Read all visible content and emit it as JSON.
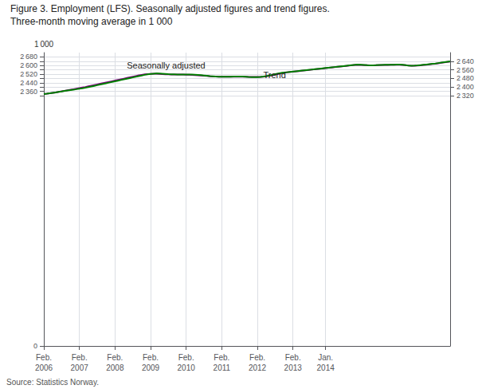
{
  "chart_data": {
    "type": "line",
    "title": "Figure 3. Employment (LFS). Seasonally adjusted figures and trend figures.",
    "subtitle": "Three-month moving average in 1 000",
    "source": "Source: Statistics Norway.",
    "ylabel": "1 000",
    "categories": [
      "Feb.\n2006",
      null,
      null,
      null,
      null,
      null,
      null,
      null,
      null,
      null,
      null,
      null,
      "Feb.\n2007",
      null,
      null,
      null,
      null,
      null,
      null,
      null,
      null,
      null,
      null,
      null,
      "Feb.\n2008",
      null,
      null,
      null,
      null,
      null,
      null,
      null,
      null,
      null,
      null,
      null,
      "Feb.\n2009",
      null,
      null,
      null,
      null,
      null,
      null,
      null,
      null,
      null,
      null,
      null,
      "Feb.\n2010",
      null,
      null,
      null,
      null,
      null,
      null,
      null,
      null,
      null,
      null,
      null,
      "Feb.\n2011",
      null,
      null,
      null,
      null,
      null,
      null,
      null,
      null,
      null,
      null,
      null,
      "Feb.\n2012",
      null,
      null,
      null,
      null,
      null,
      null,
      null,
      null,
      null,
      null,
      null,
      "Feb.\n2013",
      null,
      null,
      null,
      null,
      null,
      null,
      null,
      null,
      null,
      null,
      "Jan.\n2014",
      null,
      null,
      null,
      null,
      null,
      null,
      null,
      null,
      null,
      null,
      null,
      null,
      null,
      null,
      null,
      null,
      null,
      null,
      null,
      null,
      null,
      null,
      null,
      null,
      null,
      null,
      null,
      null,
      null,
      null,
      null,
      null,
      null,
      null,
      null,
      null,
      null,
      null,
      null,
      null,
      null,
      null
    ],
    "series": [
      {
        "name": "Trend",
        "color": "#800080",
        "values": [
          2336,
          2339,
          2343,
          2347,
          2351,
          2356,
          2361,
          2366,
          2371,
          2376,
          2381,
          2386,
          2391,
          2396,
          2401,
          2407,
          2413,
          2419,
          2425,
          2431,
          2437,
          2443,
          2449,
          2455,
          2461,
          2467,
          2473,
          2479,
          2485,
          2491,
          2497,
          2503,
          2509,
          2514,
          2518,
          2521,
          2523,
          2524,
          2524,
          2523,
          2521,
          2519,
          2518,
          2517,
          2516,
          2516,
          2516,
          2516,
          2515,
          2514,
          2513,
          2511,
          2509,
          2507,
          2505,
          2503,
          2501,
          2499,
          2498,
          2497,
          2496,
          2496,
          2496,
          2496,
          2496,
          2496,
          2496,
          2496,
          2496,
          2495,
          2494,
          2494,
          2494,
          2495,
          2497,
          2500,
          2505,
          2510,
          2516,
          2522,
          2528,
          2533,
          2537,
          2540,
          2543,
          2546,
          2549,
          2552,
          2555,
          2558,
          2561,
          2564,
          2567,
          2570,
          2573,
          2576,
          2579,
          2582,
          2585,
          2588,
          2591,
          2594,
          2597,
          2600,
          2603,
          2606,
          2607,
          2606,
          2604,
          2603,
          2602,
          2602,
          2603,
          2604,
          2605,
          2606,
          2606,
          2607,
          2608,
          2608,
          2608,
          2606,
          2603,
          2600,
          2598,
          2598,
          2600,
          2602,
          2605,
          2608,
          2611,
          2614,
          2617,
          2621,
          2625,
          2629,
          2633,
          2637
        ]
      },
      {
        "name": "Seasonally adjusted",
        "color": "#008000",
        "values": [
          2336,
          2339,
          2343,
          2347,
          2351,
          2356,
          2360,
          2365,
          2369,
          2373,
          2377,
          2381,
          2386,
          2390,
          2395,
          2400,
          2406,
          2412,
          2418,
          2424,
          2430,
          2436,
          2442,
          2448,
          2454,
          2460,
          2466,
          2472,
          2478,
          2484,
          2490,
          2496,
          2502,
          2508,
          2514,
          2519,
          2522,
          2525,
          2527,
          2526,
          2524,
          2522,
          2520,
          2519,
          2518,
          2517,
          2517,
          2516,
          2516,
          2516,
          2516,
          2515,
          2513,
          2511,
          2508,
          2505,
          2502,
          2500,
          2498,
          2497,
          2496,
          2496,
          2496,
          2497,
          2498,
          2499,
          2499,
          2498,
          2496,
          2494,
          2493,
          2492,
          2493,
          2495,
          2498,
          2502,
          2508,
          2514,
          2520,
          2526,
          2531,
          2535,
          2538,
          2541,
          2544,
          2547,
          2550,
          2553,
          2556,
          2559,
          2562,
          2565,
          2568,
          2571,
          2574,
          2577,
          2580,
          2583,
          2586,
          2589,
          2592,
          2595,
          2598,
          2601,
          2604,
          2607,
          2609,
          2608,
          2606,
          2603,
          2602,
          2602,
          2603,
          2605,
          2606,
          2607,
          2607,
          2607,
          2608,
          2609,
          2609,
          2607,
          2603,
          2599,
          2598,
          2599,
          2601,
          2604,
          2607,
          2610,
          2613,
          2616,
          2619,
          2623,
          2627,
          2631,
          2635,
          2638
        ]
      }
    ],
    "ylim": [
      0,
      2720
    ],
    "yticks": [
      0,
      {
        "value": 2320,
        "label": "2 320"
      },
      {
        "value": 2360,
        "label": "2 360"
      },
      {
        "value": 2400,
        "label": "2 400"
      },
      {
        "value": 2440,
        "label": "2 440"
      },
      {
        "value": 2480,
        "label": "2 480"
      },
      {
        "value": 2520,
        "label": "2 520"
      },
      {
        "value": 2560,
        "label": "2 560"
      },
      {
        "value": 2600,
        "label": "2 600"
      },
      {
        "value": 2640,
        "label": "2 640"
      },
      {
        "value": 2680,
        "label": "2 680"
      }
    ],
    "grid": true,
    "annotations": [
      {
        "text": "Seasonally adjusted",
        "x": 28,
        "y": 2558
      },
      {
        "text": "Trend",
        "x": 74,
        "y": 2472
      }
    ]
  }
}
